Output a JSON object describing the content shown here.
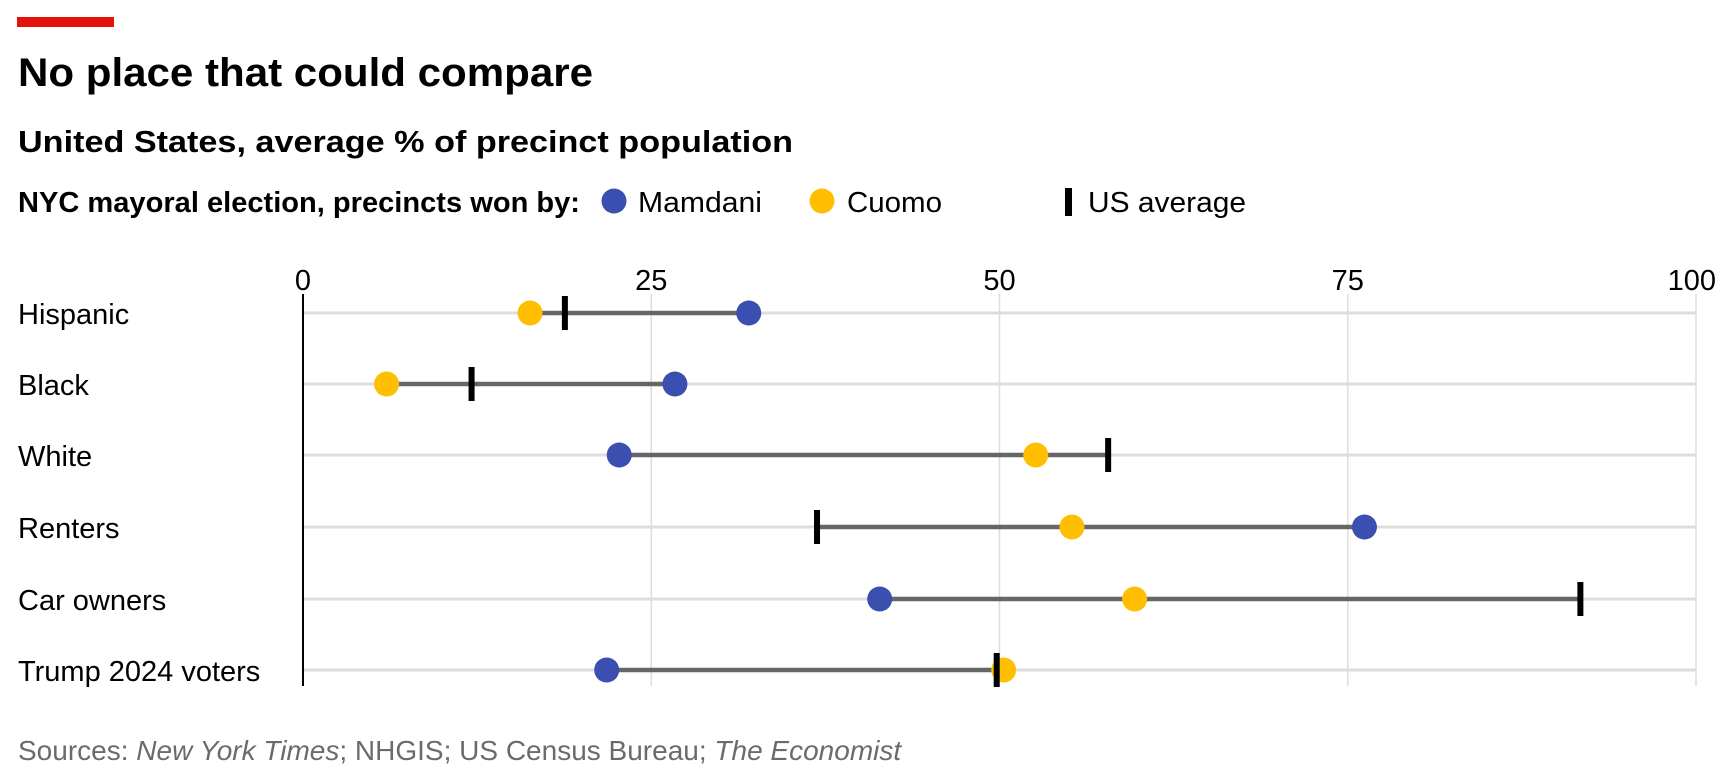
{
  "header": {
    "title": "No place that could compare",
    "subtitle": "United States, average % of precinct population"
  },
  "legend": {
    "intro": "NYC mayoral election, precincts won by:",
    "items": [
      {
        "label": "Mamdani",
        "color": "#3a4fb0",
        "shape": "dot"
      },
      {
        "label": "Cuomo",
        "color": "#ffbf00",
        "shape": "dot"
      },
      {
        "label": "US average",
        "color": "#000000",
        "shape": "tick"
      }
    ]
  },
  "footer": {
    "sources_prefix": "Sources: ",
    "source1": "New York Times",
    "sep1": "; NHGIS; US Census Bureau; ",
    "source2": "The Economist"
  },
  "colors": {
    "accent": "#e3120b",
    "mamdani": "#3a4fb0",
    "cuomo": "#ffbf00",
    "range": "#666666",
    "grid": "#dddddd"
  },
  "chart_data": {
    "type": "dot-range",
    "title": "No place that could compare",
    "subtitle": "United States, average % of precinct population",
    "xlim": [
      0,
      100
    ],
    "xticks": [
      "0",
      "25",
      "50",
      "75",
      "100"
    ],
    "grid": true,
    "legend_position": "top-left",
    "categories": [
      "Hispanic",
      "Black",
      "White",
      "Renters",
      "Car owners",
      "Trump 2024 voters"
    ],
    "series": [
      {
        "name": "Mamdani",
        "values": [
          32.0,
          26.7,
          22.7,
          76.2,
          41.4,
          21.8
        ]
      },
      {
        "name": "Cuomo",
        "values": [
          16.3,
          6.0,
          52.6,
          55.2,
          59.7,
          50.3
        ]
      },
      {
        "name": "US average",
        "values": [
          18.8,
          12.1,
          57.8,
          36.9,
          91.7,
          49.8
        ]
      }
    ]
  }
}
